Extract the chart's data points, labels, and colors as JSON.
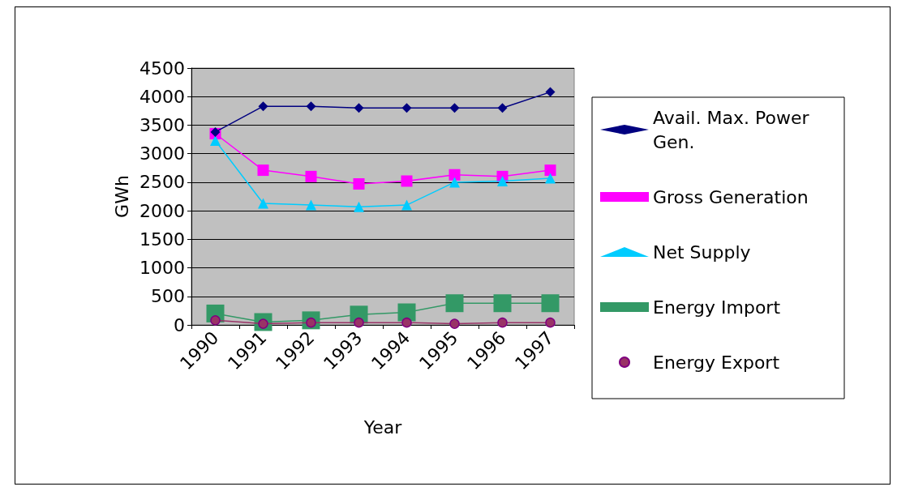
{
  "chart_data": {
    "type": "line",
    "xlabel": "Year",
    "ylabel": "GWh",
    "categories": [
      "1990",
      "1991",
      "1992",
      "1993",
      "1994",
      "1995",
      "1996",
      "1997"
    ],
    "series": [
      {
        "name": "Avail. Max. Power Gen.",
        "color": "#000080",
        "marker": "diamond",
        "values": [
          3380,
          3830,
          3830,
          3800,
          3800,
          3800,
          3800,
          4080
        ]
      },
      {
        "name": "Gross Generation",
        "color": "#ff00ff",
        "marker": "square",
        "values": [
          3350,
          2710,
          2600,
          2470,
          2520,
          2630,
          2600,
          2710
        ]
      },
      {
        "name": "Net Supply",
        "color": "#00ccff",
        "marker": "triangle",
        "values": [
          3230,
          2130,
          2100,
          2070,
          2100,
          2500,
          2520,
          2570
        ]
      },
      {
        "name": "Energy Import",
        "color": "#339966",
        "marker": "square",
        "values": [
          200,
          50,
          80,
          180,
          220,
          380,
          380,
          380
        ]
      },
      {
        "name": "Energy Export",
        "color": "#993366",
        "marker": "circle",
        "values": [
          80,
          20,
          40,
          40,
          40,
          20,
          40,
          40
        ]
      }
    ],
    "ylim": [
      0,
      4500
    ],
    "yticks": [
      0,
      500,
      1000,
      1500,
      2000,
      2500,
      3000,
      3500,
      4000,
      4500
    ],
    "grid": "y",
    "legend": "right"
  }
}
